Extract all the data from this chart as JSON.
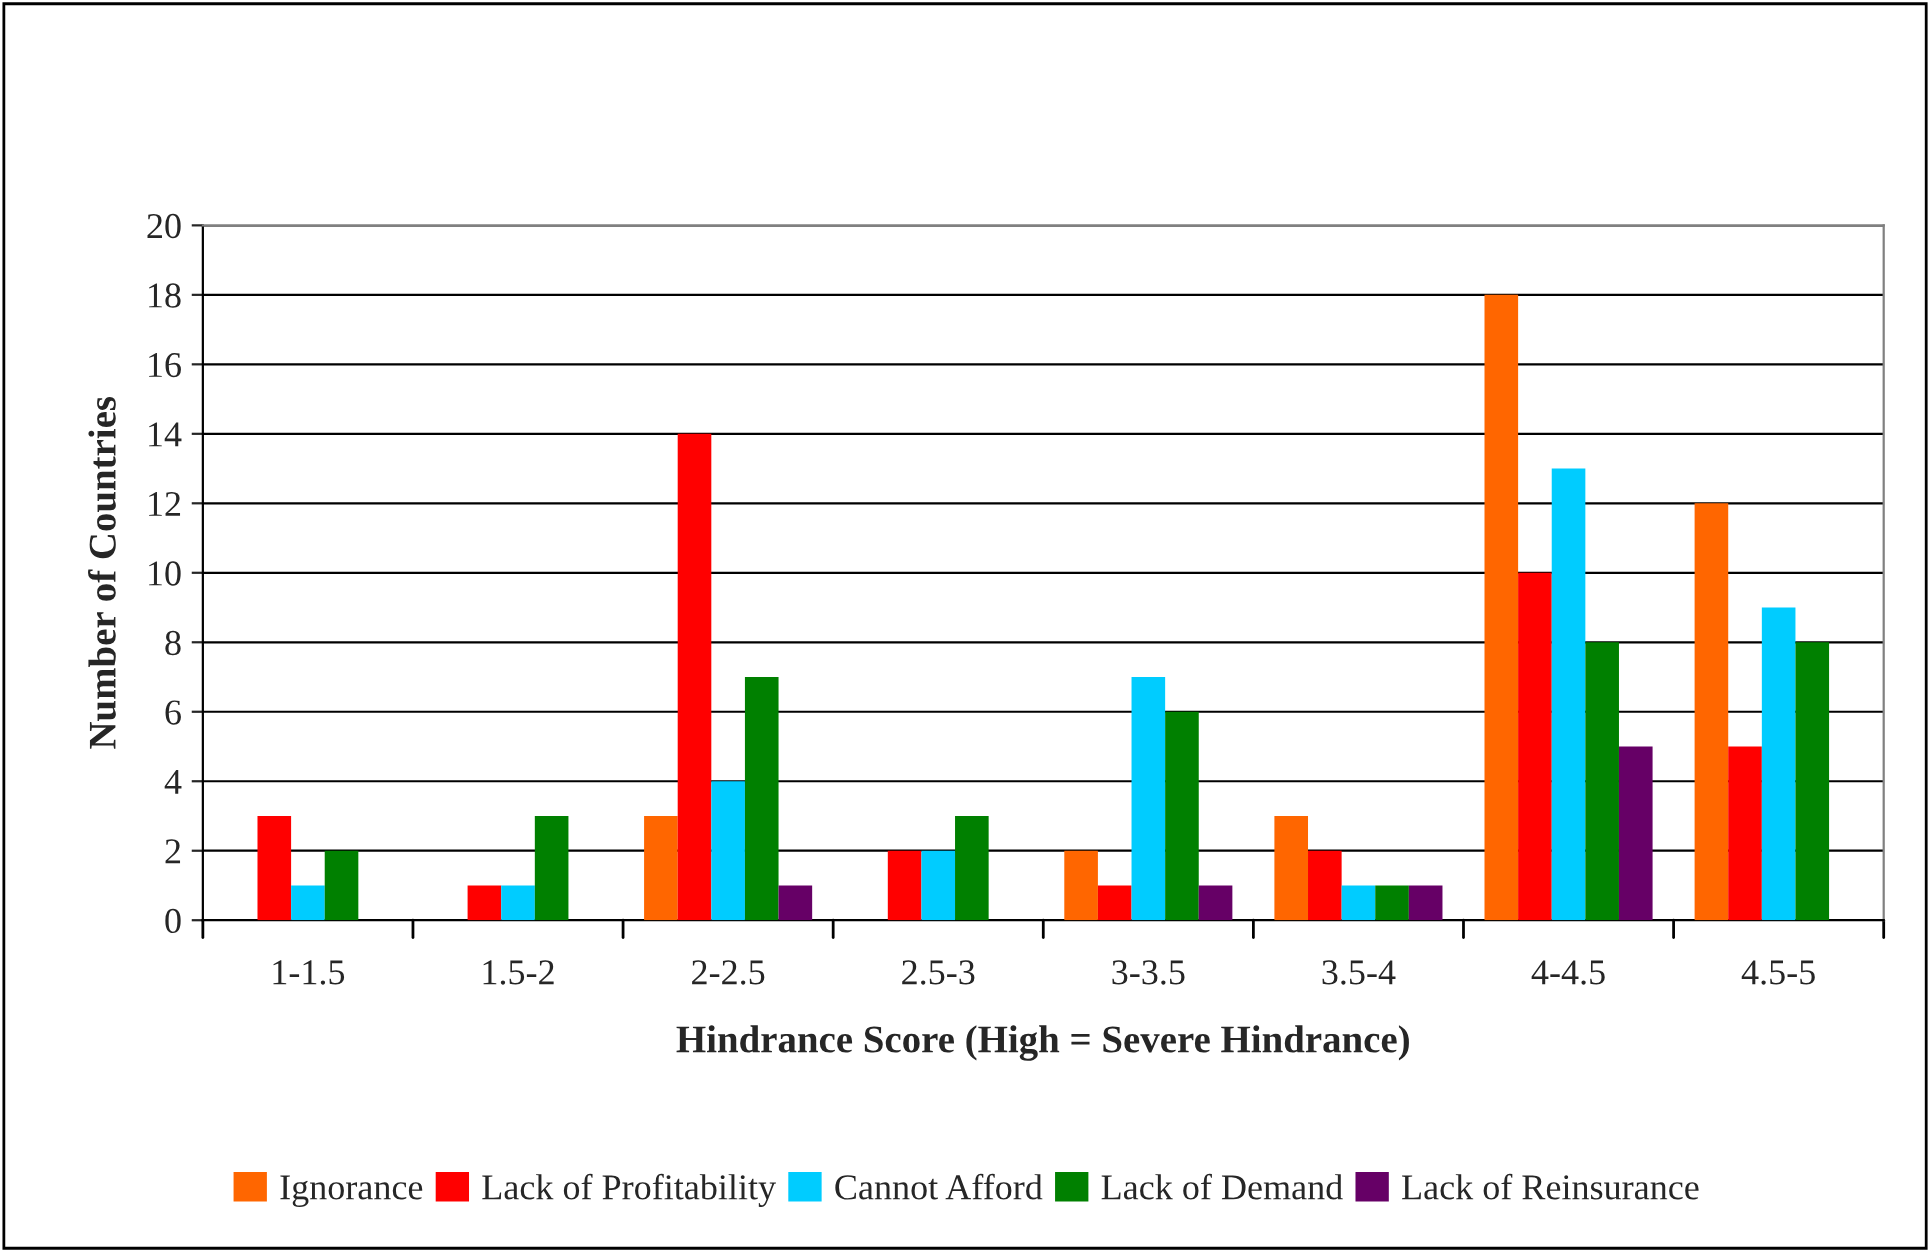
{
  "chart_data": {
    "type": "bar",
    "xlabel": "Hindrance Score (High = Severe Hindrance)",
    "ylabel": "Number of Countries",
    "categories": [
      "1-1.5",
      "1.5-2",
      "2-2.5",
      "2.5-3",
      "3-3.5",
      "3.5-4",
      "4-4.5",
      "4.5-5"
    ],
    "series": [
      {
        "name": "Ignorance",
        "color": "#ff6600",
        "values": [
          0,
          0,
          3,
          0,
          2,
          3,
          18,
          12
        ]
      },
      {
        "name": "Lack of Profitability",
        "color": "#ff0000",
        "values": [
          3,
          1,
          14,
          2,
          1,
          2,
          10,
          5
        ]
      },
      {
        "name": "Cannot Afford",
        "color": "#00ccff",
        "values": [
          1,
          1,
          4,
          2,
          7,
          1,
          13,
          9
        ]
      },
      {
        "name": "Lack of Demand",
        "color": "#008000",
        "values": [
          2,
          3,
          7,
          3,
          6,
          1,
          8,
          8
        ]
      },
      {
        "name": "Lack of Reinsurance",
        "color": "#660066",
        "values": [
          0,
          0,
          1,
          0,
          1,
          1,
          5,
          0
        ]
      }
    ],
    "ylim": [
      0,
      20
    ],
    "yticks": [
      0,
      2,
      4,
      6,
      8,
      10,
      12,
      14,
      16,
      18,
      20
    ],
    "grid": "y",
    "legend": "bottom"
  }
}
